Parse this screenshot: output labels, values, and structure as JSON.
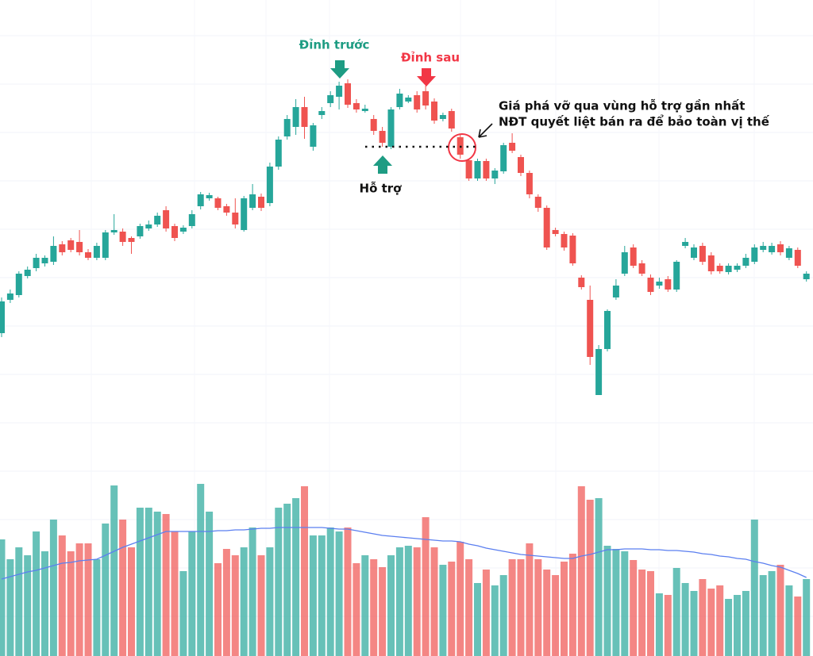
{
  "chart_data": {
    "type": "candlestick",
    "up_color": "#26a69a",
    "down_color": "#ef5350",
    "volume_ma_color": "#5b7ff0",
    "grid": true,
    "ylim": [
      0,
      600
    ],
    "volume_ylim": [
      0,
      827
    ],
    "open": [
      180,
      222,
      228,
      252,
      262,
      268,
      270,
      292,
      297,
      295,
      282,
      275,
      275,
      307,
      308,
      300,
      302,
      312,
      317,
      335,
      315,
      308,
      315,
      340,
      350,
      350,
      340,
      332,
      310,
      338,
      352,
      344,
      390,
      428,
      440,
      465,
      415,
      455,
      470,
      478,
      495,
      470,
      460,
      450,
      435,
      415,
      465,
      472,
      480,
      485,
      472,
      450,
      460,
      427,
      398,
      375,
      397,
      375,
      384,
      420,
      402,
      382,
      352,
      338,
      310,
      305,
      303,
      250,
      222,
      102,
      160,
      225,
      255,
      288,
      268,
      250,
      240,
      248,
      235,
      290,
      275,
      290,
      278,
      265,
      257,
      260,
      265,
      270,
      285,
      282,
      292,
      275,
      285,
      248
    ],
    "high": [
      225,
      235,
      258,
      264,
      280,
      278,
      302,
      296,
      300,
      310,
      286,
      294,
      310,
      330,
      312,
      302,
      318,
      322,
      332,
      340,
      318,
      316,
      335,
      358,
      357,
      352,
      343,
      350,
      353,
      368,
      356,
      395,
      428,
      455,
      475,
      478,
      445,
      465,
      485,
      497,
      500,
      475,
      468,
      455,
      440,
      465,
      488,
      480,
      485,
      492,
      476,
      458,
      463,
      430,
      400,
      400,
      400,
      388,
      420,
      432,
      405,
      385,
      355,
      341,
      313,
      308,
      306,
      253,
      240,
      165,
      210,
      248,
      290,
      292,
      272,
      254,
      250,
      252,
      272,
      300,
      292,
      294,
      282,
      268,
      268,
      268,
      280,
      292,
      295,
      294,
      296,
      290,
      288,
      258
    ],
    "low": [
      175,
      218,
      225,
      249,
      258,
      264,
      266,
      278,
      282,
      278,
      272,
      272,
      272,
      304,
      290,
      280,
      299,
      309,
      314,
      308,
      296,
      305,
      312,
      336,
      347,
      335,
      328,
      312,
      308,
      335,
      334,
      340,
      386,
      424,
      430,
      425,
      410,
      450,
      465,
      462,
      464,
      458,
      458,
      430,
      415,
      412,
      462,
      470,
      458,
      462,
      444,
      447,
      434,
      400,
      372,
      372,
      372,
      368,
      381,
      407,
      378,
      350,
      333,
      285,
      302,
      284,
      265,
      235,
      140,
      102,
      157,
      222,
      252,
      262,
      252,
      228,
      236,
      232,
      232,
      287,
      272,
      266,
      254,
      255,
      254,
      257,
      262,
      267,
      282,
      279,
      278,
      272,
      262,
      245
    ],
    "close": [
      220,
      230,
      255,
      260,
      275,
      275,
      290,
      282,
      285,
      282,
      275,
      290,
      307,
      310,
      295,
      295,
      315,
      317,
      328,
      312,
      300,
      313,
      330,
      355,
      354,
      338,
      332,
      317,
      350,
      355,
      338,
      390,
      424,
      450,
      465,
      440,
      442,
      460,
      480,
      492,
      468,
      462,
      463,
      435,
      420,
      462,
      482,
      477,
      462,
      467,
      448,
      455,
      438,
      405,
      375,
      397,
      375,
      385,
      417,
      410,
      382,
      355,
      338,
      288,
      305,
      288,
      268,
      238,
      150,
      160,
      208,
      240,
      282,
      265,
      255,
      232,
      245,
      235,
      270,
      295,
      288,
      270,
      258,
      258,
      265,
      265,
      275,
      288,
      290,
      290,
      282,
      287,
      265,
      255
    ],
    "volume": [
      147,
      122,
      137,
      127,
      157,
      132,
      172,
      152,
      132,
      142,
      142,
      122,
      167,
      215,
      172,
      137,
      187,
      187,
      182,
      179,
      157,
      107,
      157,
      217,
      182,
      117,
      135,
      127,
      137,
      162,
      127,
      137,
      187,
      192,
      199,
      214,
      152,
      152,
      162,
      157,
      162,
      117,
      127,
      122,
      112,
      127,
      137,
      139,
      137,
      175,
      137,
      115,
      119,
      144,
      122,
      92,
      109,
      89,
      102,
      122,
      122,
      142,
      122,
      109,
      102,
      119,
      129,
      214,
      197,
      199,
      139,
      135,
      132,
      121,
      109,
      107,
      79,
      77,
      111,
      92,
      82,
      97,
      85,
      89,
      72,
      77,
      82,
      172,
      102,
      107,
      115,
      89,
      75,
      97
    ],
    "volume_ma": [
      97,
      100,
      103,
      106,
      108,
      111,
      114,
      117,
      118,
      120,
      121,
      122,
      127,
      132,
      137,
      141,
      145,
      149,
      153,
      157,
      157,
      157,
      157,
      157,
      157,
      158,
      158,
      159,
      159,
      160,
      161,
      161,
      162,
      162,
      162,
      162,
      162,
      162,
      161,
      160,
      160,
      158,
      156,
      154,
      152,
      151,
      150,
      149,
      148,
      147,
      146,
      145,
      145,
      144,
      141,
      139,
      136,
      134,
      132,
      130,
      128,
      127,
      126,
      125,
      124,
      123,
      123,
      126,
      128,
      131,
      134,
      134,
      135,
      135,
      135,
      134,
      134,
      133,
      133,
      132,
      131,
      129,
      128,
      126,
      125,
      123,
      122,
      119,
      117,
      114,
      112,
      108,
      104,
      99
    ],
    "support_level": 415,
    "annotations": {
      "previous_peak": "Đỉnh trước",
      "later_peak": "Đỉnh sau",
      "support": "Hỗ trợ",
      "note": [
        "Giá phá vỡ qua vùng hỗ trợ gần nhất",
        "NĐT quyết liệt bán ra để bảo toàn vị thế"
      ]
    }
  }
}
